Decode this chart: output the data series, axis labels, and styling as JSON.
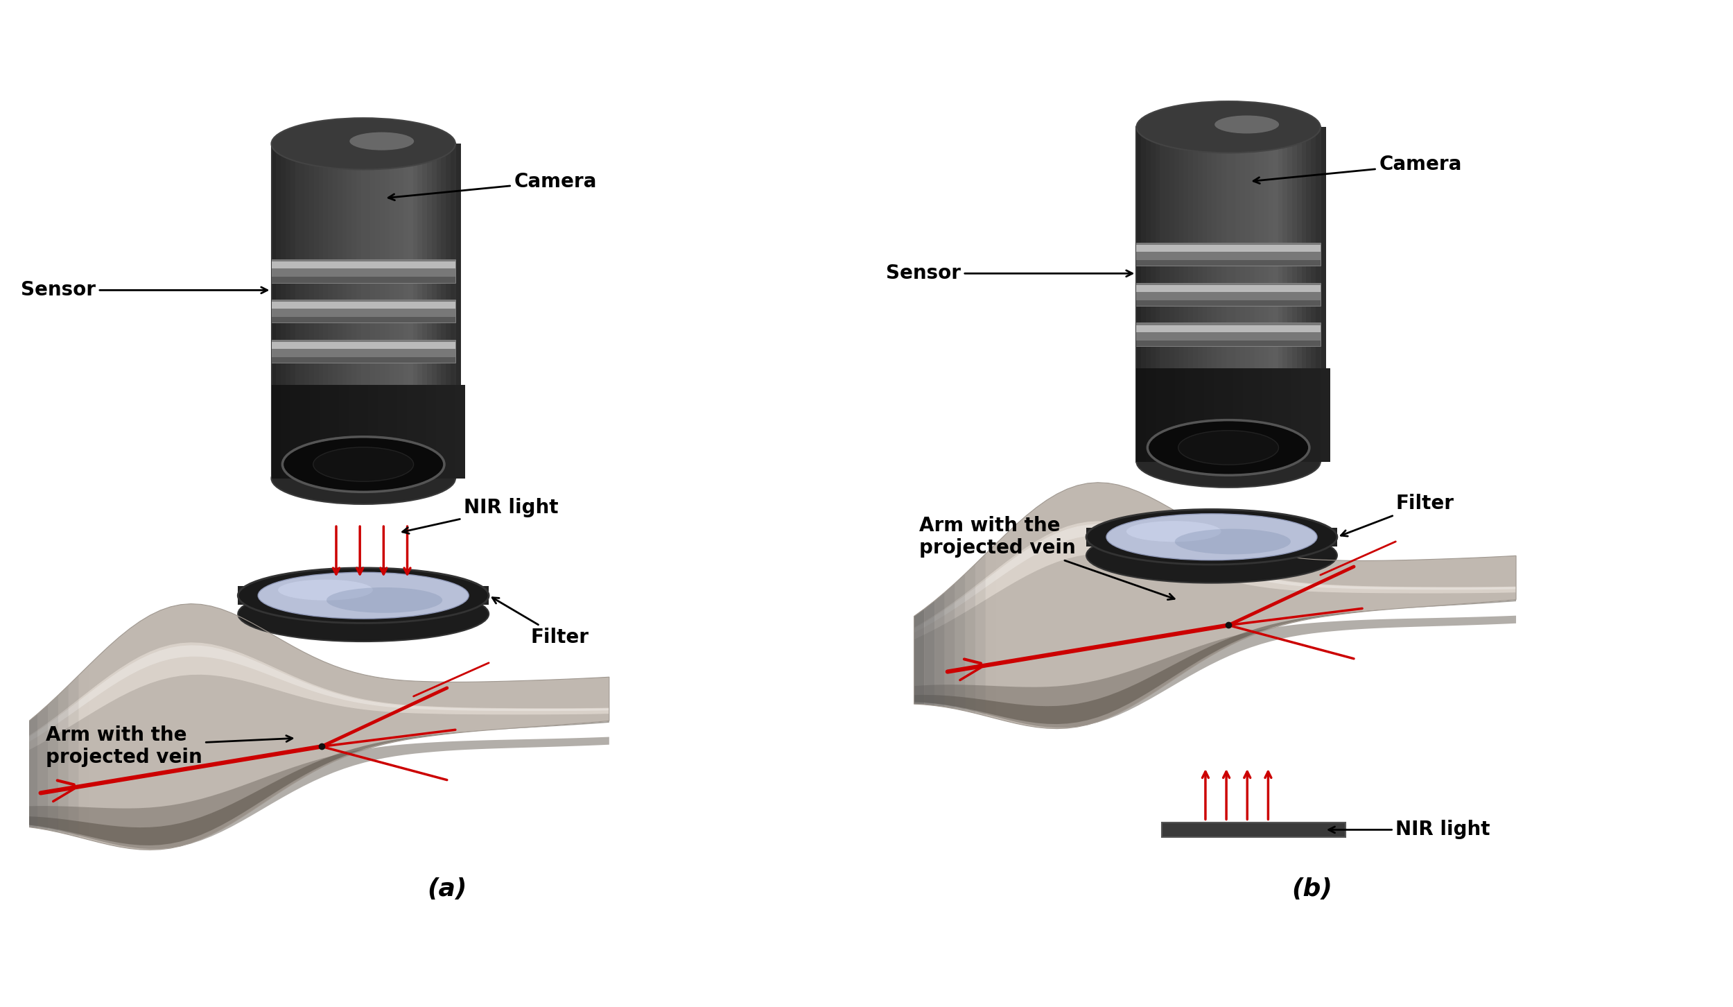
{
  "background_color": "#ffffff",
  "fig_width": 25.0,
  "fig_height": 14.52,
  "panel_a_label": "(a)",
  "panel_b_label": "(b)",
  "labels": {
    "camera": "Camera",
    "sensor": "Sensor",
    "nir_light": "NIR light",
    "filter": "Filter",
    "arm_vein": "Arm with the\nprojected vein"
  },
  "arrow_color": "#000000",
  "nir_arrow_color": "#cc0000",
  "vein_color": "#cc0000",
  "panel_label_fontsize": 26,
  "annotation_fontsize": 20,
  "label_fontweight": "bold"
}
